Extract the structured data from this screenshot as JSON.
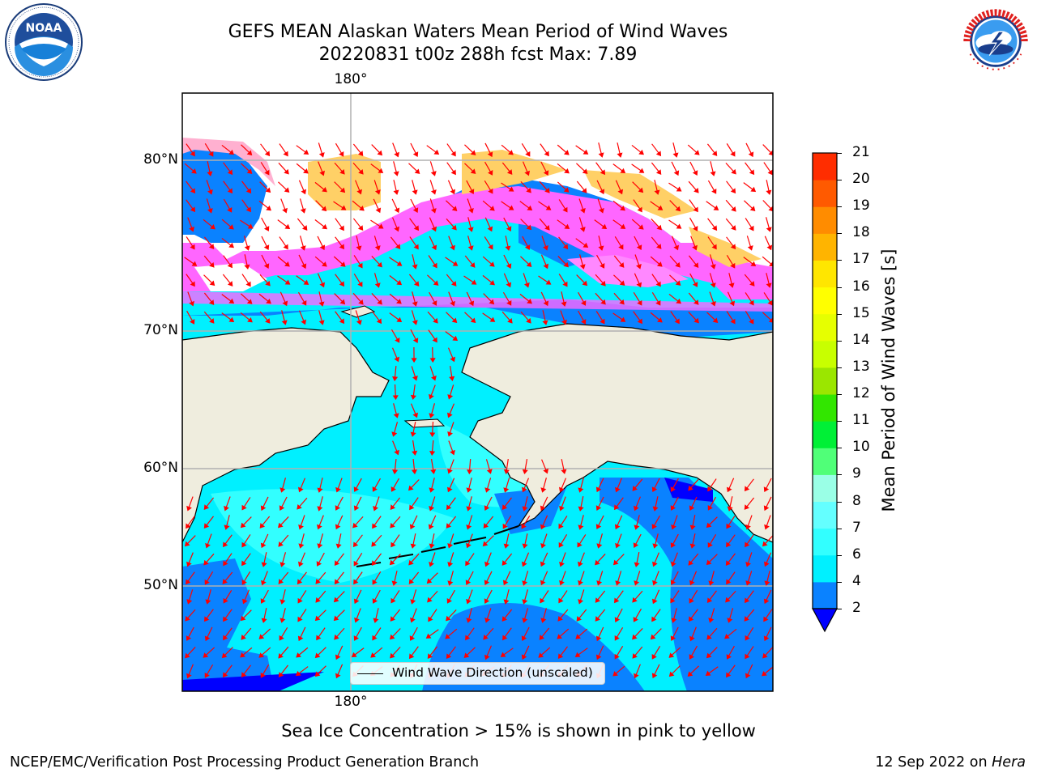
{
  "title": {
    "line1": "GEFS MEAN Alaskan Waters Mean Period of Wind Waves",
    "line2": "20220831 t00z 288h fcst   Max: 7.89"
  },
  "logos": {
    "left": {
      "name": "NOAA",
      "ring_text": "NATIONAL OCEANIC AND ATMOSPHERIC ADMINISTRATION · U.S. DEPARTMENT OF COMMERCE"
    },
    "right": {
      "name": "National Weather Service",
      "ring_text": "NATIONAL WEATHER SERVICE"
    }
  },
  "map": {
    "lon_labels": {
      "top": "180°",
      "bottom": "180°"
    },
    "lat_labels": [
      "80°N",
      "70°N",
      "60°N",
      "50°N"
    ],
    "legend": {
      "label": "Wind Wave Direction (unscaled)"
    },
    "colors": {
      "land": "#efedde",
      "ice_pink": "#ff66ff",
      "ice_yellow": "#ffe066",
      "grid": "#b0b0b0",
      "arrow": "#ff0000"
    }
  },
  "colorbar": {
    "label": "Mean Period of Wind Waves [s]",
    "ticks": [
      "2",
      "4",
      "6",
      "7",
      "8",
      "9",
      "10",
      "11",
      "12",
      "13",
      "14",
      "15",
      "16",
      "17",
      "18",
      "19",
      "20",
      "21"
    ],
    "colors": [
      "#0a82ff",
      "#00f0ff",
      "#32ffff",
      "#64ffff",
      "#9affe6",
      "#50ff78",
      "#00f036",
      "#32e600",
      "#9be600",
      "#c8ff00",
      "#e6ff00",
      "#ffff00",
      "#ffe600",
      "#ffb400",
      "#ff8c00",
      "#ff5a00",
      "#ff2d00"
    ],
    "under_color": "#0000ff"
  },
  "footnote": "Sea Ice Concentration > 15% is shown in pink to yellow",
  "credit": {
    "left": "NCEP/EMC/Verification Post Processing Product Generation Branch",
    "date": "12 Sep 2022 on",
    "machine": "Hera"
  }
}
